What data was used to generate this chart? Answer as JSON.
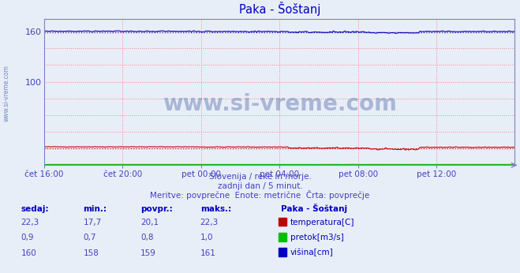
{
  "title": "Paka - Šoštanj",
  "fig_bg_color": "#e8eef8",
  "plot_bg_color": "#e8eef8",
  "x_labels": [
    "čet 16:00",
    "čet 20:00",
    "pet 00:00",
    "pet 04:00",
    "pet 08:00",
    "pet 12:00"
  ],
  "x_ticks_pos": [
    0,
    48,
    96,
    144,
    192,
    240
  ],
  "total_points": 289,
  "ylim": [
    0,
    175
  ],
  "yticks_labeled": [
    100,
    160
  ],
  "yticks_grid": [
    0,
    20,
    40,
    60,
    80,
    100,
    120,
    140,
    160
  ],
  "ylabel_color": "#4040c0",
  "grid_color": "#ff8080",
  "temp_color": "#c00000",
  "temp_avg": 20.1,
  "temp_min": 17.7,
  "temp_max": 22.3,
  "pretok_color": "#00c000",
  "pretok_avg": 0.8,
  "pretok_min": 0.7,
  "pretok_max": 1.0,
  "visina_color": "#0000c0",
  "visina_avg": 159,
  "visina_min": 158,
  "visina_max": 161,
  "watermark": "www.si-vreme.com",
  "watermark_color": "#1a3a8a",
  "watermark_alpha": 0.3,
  "subtitle1": "Slovenija / reke in morje.",
  "subtitle2": "zadnji dan / 5 minut.",
  "subtitle3": "Meritve: povprečne  Enote: metrične  Črta: povprečje",
  "subtitle_color": "#4040c0",
  "table_header_color": "#0000c0",
  "table_val_color": "#4040c0",
  "table_label_color": "#0000c0",
  "legend_title": "Paka - Šoštanj",
  "legend_items": [
    "temperatura[C]",
    "pretok[m3/s]",
    "višina[cm]"
  ],
  "legend_colors": [
    "#c00000",
    "#00c000",
    "#0000c0"
  ],
  "side_label": "www.si-vreme.com",
  "side_label_color": "#5070b0",
  "spine_color": "#8080c0",
  "arrow_color": "#8080c0"
}
